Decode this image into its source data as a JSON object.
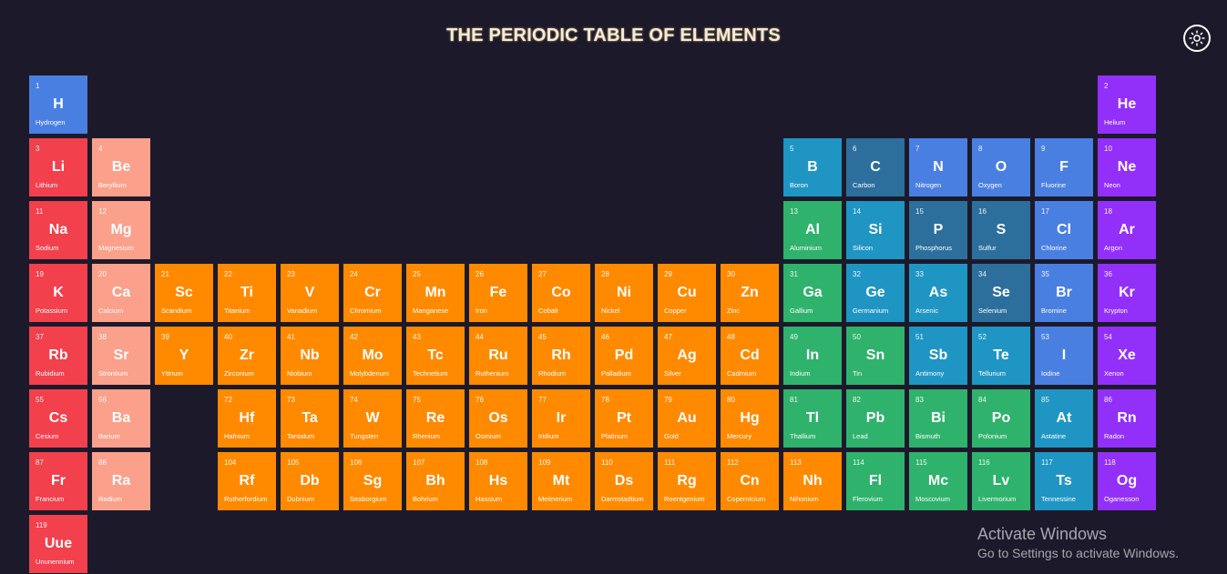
{
  "header": {
    "title": "THE PERIODIC TABLE OF ELEMENTS",
    "theme_icon": "sun-icon"
  },
  "colors": {
    "background": "#1c1a2a",
    "alkali": "#f2404c",
    "alkaline_earth": "#fba08b",
    "transition": "#ff8a00",
    "post_transition": "#2fb26c",
    "metalloid": "#1f95c4",
    "nonmetal": "#2c6f9c",
    "halogen": "#4a7fe2",
    "noble": "#9230fa",
    "hydrogen": "#4a7fe2"
  },
  "elements": [
    {
      "n": "1",
      "s": "H",
      "name": "Hydrogen",
      "row": 1,
      "col": 1,
      "cat": "hydrogen"
    },
    {
      "n": "2",
      "s": "He",
      "name": "Helium",
      "row": 1,
      "col": 18,
      "cat": "noble"
    },
    {
      "n": "3",
      "s": "Li",
      "name": "Lithium",
      "row": 2,
      "col": 1,
      "cat": "alkali"
    },
    {
      "n": "4",
      "s": "Be",
      "name": "Beryllium",
      "row": 2,
      "col": 2,
      "cat": "alkaline_earth"
    },
    {
      "n": "5",
      "s": "B",
      "name": "Boron",
      "row": 2,
      "col": 13,
      "cat": "metalloid"
    },
    {
      "n": "6",
      "s": "C",
      "name": "Carbon",
      "row": 2,
      "col": 14,
      "cat": "nonmetal"
    },
    {
      "n": "7",
      "s": "N",
      "name": "Nitrogen",
      "row": 2,
      "col": 15,
      "cat": "halogen"
    },
    {
      "n": "8",
      "s": "O",
      "name": "Oxygen",
      "row": 2,
      "col": 16,
      "cat": "halogen"
    },
    {
      "n": "9",
      "s": "F",
      "name": "Fluorine",
      "row": 2,
      "col": 17,
      "cat": "halogen"
    },
    {
      "n": "10",
      "s": "Ne",
      "name": "Neon",
      "row": 2,
      "col": 18,
      "cat": "noble"
    },
    {
      "n": "11",
      "s": "Na",
      "name": "Sodium",
      "row": 3,
      "col": 1,
      "cat": "alkali"
    },
    {
      "n": "12",
      "s": "Mg",
      "name": "Magnesium",
      "row": 3,
      "col": 2,
      "cat": "alkaline_earth"
    },
    {
      "n": "13",
      "s": "Al",
      "name": "Aluminium",
      "row": 3,
      "col": 13,
      "cat": "post_transition"
    },
    {
      "n": "14",
      "s": "Si",
      "name": "Silicon",
      "row": 3,
      "col": 14,
      "cat": "metalloid"
    },
    {
      "n": "15",
      "s": "P",
      "name": "Phosphorus",
      "row": 3,
      "col": 15,
      "cat": "nonmetal"
    },
    {
      "n": "16",
      "s": "S",
      "name": "Sulfur",
      "row": 3,
      "col": 16,
      "cat": "nonmetal"
    },
    {
      "n": "17",
      "s": "Cl",
      "name": "Chlorine",
      "row": 3,
      "col": 17,
      "cat": "halogen"
    },
    {
      "n": "18",
      "s": "Ar",
      "name": "Argon",
      "row": 3,
      "col": 18,
      "cat": "noble"
    },
    {
      "n": "19",
      "s": "K",
      "name": "Potassium",
      "row": 4,
      "col": 1,
      "cat": "alkali"
    },
    {
      "n": "20",
      "s": "Ca",
      "name": "Calcium",
      "row": 4,
      "col": 2,
      "cat": "alkaline_earth"
    },
    {
      "n": "21",
      "s": "Sc",
      "name": "Scandium",
      "row": 4,
      "col": 3,
      "cat": "transition"
    },
    {
      "n": "22",
      "s": "Ti",
      "name": "Titanium",
      "row": 4,
      "col": 4,
      "cat": "transition"
    },
    {
      "n": "23",
      "s": "V",
      "name": "Vanadium",
      "row": 4,
      "col": 5,
      "cat": "transition"
    },
    {
      "n": "24",
      "s": "Cr",
      "name": "Chromium",
      "row": 4,
      "col": 6,
      "cat": "transition"
    },
    {
      "n": "25",
      "s": "Mn",
      "name": "Manganese",
      "row": 4,
      "col": 7,
      "cat": "transition"
    },
    {
      "n": "26",
      "s": "Fe",
      "name": "Iron",
      "row": 4,
      "col": 8,
      "cat": "transition"
    },
    {
      "n": "27",
      "s": "Co",
      "name": "Cobalt",
      "row": 4,
      "col": 9,
      "cat": "transition"
    },
    {
      "n": "28",
      "s": "Ni",
      "name": "Nickel",
      "row": 4,
      "col": 10,
      "cat": "transition"
    },
    {
      "n": "29",
      "s": "Cu",
      "name": "Copper",
      "row": 4,
      "col": 11,
      "cat": "transition"
    },
    {
      "n": "30",
      "s": "Zn",
      "name": "Zinc",
      "row": 4,
      "col": 12,
      "cat": "transition"
    },
    {
      "n": "31",
      "s": "Ga",
      "name": "Gallium",
      "row": 4,
      "col": 13,
      "cat": "post_transition"
    },
    {
      "n": "32",
      "s": "Ge",
      "name": "Germanium",
      "row": 4,
      "col": 14,
      "cat": "metalloid"
    },
    {
      "n": "33",
      "s": "As",
      "name": "Arsenic",
      "row": 4,
      "col": 15,
      "cat": "metalloid"
    },
    {
      "n": "34",
      "s": "Se",
      "name": "Selenium",
      "row": 4,
      "col": 16,
      "cat": "nonmetal"
    },
    {
      "n": "35",
      "s": "Br",
      "name": "Bromine",
      "row": 4,
      "col": 17,
      "cat": "halogen"
    },
    {
      "n": "36",
      "s": "Kr",
      "name": "Krypton",
      "row": 4,
      "col": 18,
      "cat": "noble"
    },
    {
      "n": "37",
      "s": "Rb",
      "name": "Rubidium",
      "row": 5,
      "col": 1,
      "cat": "alkali"
    },
    {
      "n": "38",
      "s": "Sr",
      "name": "Strontium",
      "row": 5,
      "col": 2,
      "cat": "alkaline_earth"
    },
    {
      "n": "39",
      "s": "Y",
      "name": "Yttrium",
      "row": 5,
      "col": 3,
      "cat": "transition"
    },
    {
      "n": "40",
      "s": "Zr",
      "name": "Zirconium",
      "row": 5,
      "col": 4,
      "cat": "transition"
    },
    {
      "n": "41",
      "s": "Nb",
      "name": "Niobium",
      "row": 5,
      "col": 5,
      "cat": "transition"
    },
    {
      "n": "42",
      "s": "Mo",
      "name": "Molybdenum",
      "row": 5,
      "col": 6,
      "cat": "transition"
    },
    {
      "n": "43",
      "s": "Tc",
      "name": "Technetium",
      "row": 5,
      "col": 7,
      "cat": "transition"
    },
    {
      "n": "44",
      "s": "Ru",
      "name": "Ruthenium",
      "row": 5,
      "col": 8,
      "cat": "transition"
    },
    {
      "n": "45",
      "s": "Rh",
      "name": "Rhodium",
      "row": 5,
      "col": 9,
      "cat": "transition"
    },
    {
      "n": "46",
      "s": "Pd",
      "name": "Palladium",
      "row": 5,
      "col": 10,
      "cat": "transition"
    },
    {
      "n": "47",
      "s": "Ag",
      "name": "Silver",
      "row": 5,
      "col": 11,
      "cat": "transition"
    },
    {
      "n": "48",
      "s": "Cd",
      "name": "Cadmium",
      "row": 5,
      "col": 12,
      "cat": "transition"
    },
    {
      "n": "49",
      "s": "In",
      "name": "Indium",
      "row": 5,
      "col": 13,
      "cat": "post_transition"
    },
    {
      "n": "50",
      "s": "Sn",
      "name": "Tin",
      "row": 5,
      "col": 14,
      "cat": "post_transition"
    },
    {
      "n": "51",
      "s": "Sb",
      "name": "Antimony",
      "row": 5,
      "col": 15,
      "cat": "metalloid"
    },
    {
      "n": "52",
      "s": "Te",
      "name": "Tellurium",
      "row": 5,
      "col": 16,
      "cat": "metalloid"
    },
    {
      "n": "53",
      "s": "I",
      "name": "Iodine",
      "row": 5,
      "col": 17,
      "cat": "halogen"
    },
    {
      "n": "54",
      "s": "Xe",
      "name": "Xenon",
      "row": 5,
      "col": 18,
      "cat": "noble"
    },
    {
      "n": "55",
      "s": "Cs",
      "name": "Cesium",
      "row": 6,
      "col": 1,
      "cat": "alkali"
    },
    {
      "n": "56",
      "s": "Ba",
      "name": "Barium",
      "row": 6,
      "col": 2,
      "cat": "alkaline_earth"
    },
    {
      "n": "72",
      "s": "Hf",
      "name": "Hafnium",
      "row": 6,
      "col": 4,
      "cat": "transition"
    },
    {
      "n": "73",
      "s": "Ta",
      "name": "Tantalum",
      "row": 6,
      "col": 5,
      "cat": "transition"
    },
    {
      "n": "74",
      "s": "W",
      "name": "Tungsten",
      "row": 6,
      "col": 6,
      "cat": "transition"
    },
    {
      "n": "75",
      "s": "Re",
      "name": "Rhenium",
      "row": 6,
      "col": 7,
      "cat": "transition"
    },
    {
      "n": "76",
      "s": "Os",
      "name": "Osmium",
      "row": 6,
      "col": 8,
      "cat": "transition"
    },
    {
      "n": "77",
      "s": "Ir",
      "name": "Iridium",
      "row": 6,
      "col": 9,
      "cat": "transition"
    },
    {
      "n": "78",
      "s": "Pt",
      "name": "Platinum",
      "row": 6,
      "col": 10,
      "cat": "transition"
    },
    {
      "n": "79",
      "s": "Au",
      "name": "Gold",
      "row": 6,
      "col": 11,
      "cat": "transition"
    },
    {
      "n": "80",
      "s": "Hg",
      "name": "Mercury",
      "row": 6,
      "col": 12,
      "cat": "transition"
    },
    {
      "n": "81",
      "s": "Tl",
      "name": "Thallium",
      "row": 6,
      "col": 13,
      "cat": "post_transition"
    },
    {
      "n": "82",
      "s": "Pb",
      "name": "Lead",
      "row": 6,
      "col": 14,
      "cat": "post_transition"
    },
    {
      "n": "83",
      "s": "Bi",
      "name": "Bismuth",
      "row": 6,
      "col": 15,
      "cat": "post_transition"
    },
    {
      "n": "84",
      "s": "Po",
      "name": "Polonium",
      "row": 6,
      "col": 16,
      "cat": "post_transition"
    },
    {
      "n": "85",
      "s": "At",
      "name": "Astatine",
      "row": 6,
      "col": 17,
      "cat": "metalloid"
    },
    {
      "n": "86",
      "s": "Rn",
      "name": "Radon",
      "row": 6,
      "col": 18,
      "cat": "noble"
    },
    {
      "n": "87",
      "s": "Fr",
      "name": "Francium",
      "row": 7,
      "col": 1,
      "cat": "alkali"
    },
    {
      "n": "88",
      "s": "Ra",
      "name": "Radium",
      "row": 7,
      "col": 2,
      "cat": "alkaline_earth"
    },
    {
      "n": "104",
      "s": "Rf",
      "name": "Rutherfordium",
      "row": 7,
      "col": 4,
      "cat": "transition"
    },
    {
      "n": "105",
      "s": "Db",
      "name": "Dubnium",
      "row": 7,
      "col": 5,
      "cat": "transition"
    },
    {
      "n": "106",
      "s": "Sg",
      "name": "Seaborgium",
      "row": 7,
      "col": 6,
      "cat": "transition"
    },
    {
      "n": "107",
      "s": "Bh",
      "name": "Bohrium",
      "row": 7,
      "col": 7,
      "cat": "transition"
    },
    {
      "n": "108",
      "s": "Hs",
      "name": "Hassium",
      "row": 7,
      "col": 8,
      "cat": "transition"
    },
    {
      "n": "109",
      "s": "Mt",
      "name": "Meitnerium",
      "row": 7,
      "col": 9,
      "cat": "transition"
    },
    {
      "n": "110",
      "s": "Ds",
      "name": "Darmstadtium",
      "row": 7,
      "col": 10,
      "cat": "transition"
    },
    {
      "n": "111",
      "s": "Rg",
      "name": "Roentgenium",
      "row": 7,
      "col": 11,
      "cat": "transition"
    },
    {
      "n": "112",
      "s": "Cn",
      "name": "Copernicium",
      "row": 7,
      "col": 12,
      "cat": "transition"
    },
    {
      "n": "113",
      "s": "Nh",
      "name": "Nihonium",
      "row": 7,
      "col": 13,
      "cat": "transition"
    },
    {
      "n": "114",
      "s": "Fl",
      "name": "Flerovium",
      "row": 7,
      "col": 14,
      "cat": "post_transition"
    },
    {
      "n": "115",
      "s": "Mc",
      "name": "Moscovium",
      "row": 7,
      "col": 15,
      "cat": "post_transition"
    },
    {
      "n": "116",
      "s": "Lv",
      "name": "Livermorium",
      "row": 7,
      "col": 16,
      "cat": "post_transition"
    },
    {
      "n": "117",
      "s": "Ts",
      "name": "Tennessine",
      "row": 7,
      "col": 17,
      "cat": "metalloid"
    },
    {
      "n": "118",
      "s": "Og",
      "name": "Oganesson",
      "row": 7,
      "col": 18,
      "cat": "noble"
    },
    {
      "n": "119",
      "s": "Uue",
      "name": "Ununennium",
      "row": 8,
      "col": 1,
      "cat": "alkali"
    }
  ],
  "watermark": {
    "title": "Activate Windows",
    "subtitle": "Go to Settings to activate Windows."
  }
}
